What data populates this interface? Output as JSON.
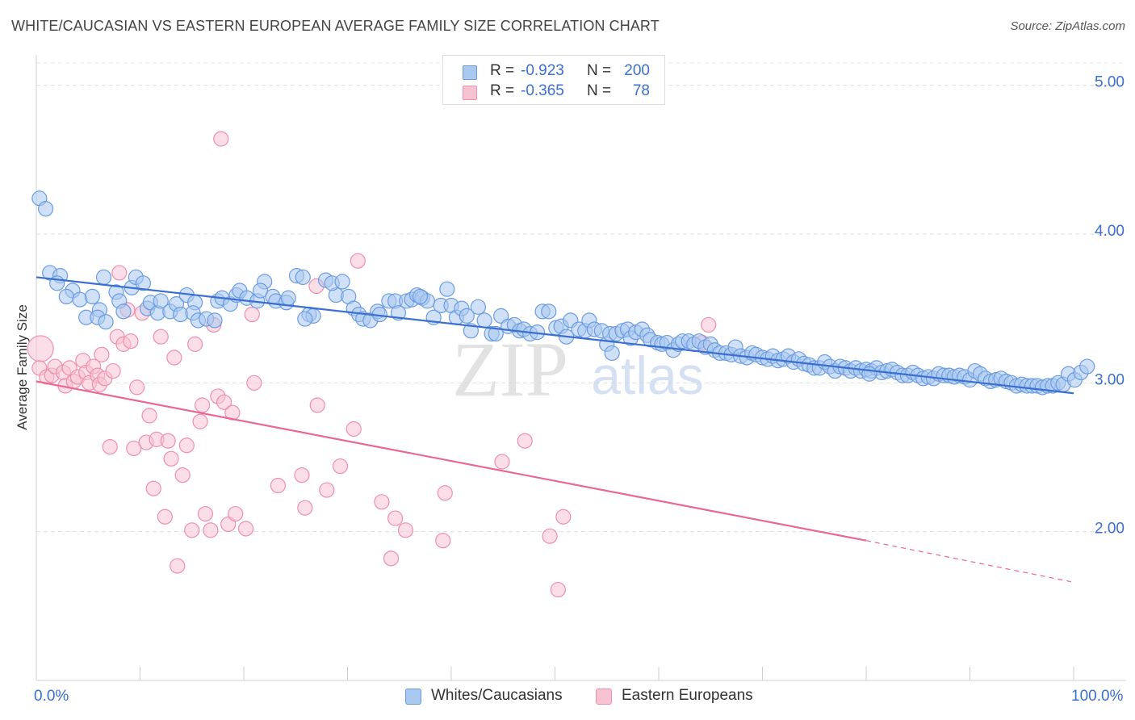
{
  "header": {
    "title": "WHITE/CAUCASIAN VS EASTERN EUROPEAN AVERAGE FAMILY SIZE CORRELATION CHART",
    "source": "Source: ZipAtlas.com"
  },
  "watermark": {
    "zip": "ZIP",
    "atlas": "atlas"
  },
  "legend_top": {
    "rows": [
      {
        "r_label": "R = ",
        "r_value": "-0.923",
        "n_label": "N = ",
        "n_value": "200"
      },
      {
        "r_label": "R = ",
        "r_value": "-0.365",
        "n_label": "N = ",
        "n_value": "78"
      }
    ]
  },
  "legend_bottom": {
    "items": [
      "Whites/Caucasians",
      "Eastern Europeans"
    ]
  },
  "colors": {
    "blue_fill": "#a9c8f0",
    "blue_stroke": "#6b9ce0",
    "blue_line": "#3a6fd0",
    "pink_fill": "#f7c3d3",
    "pink_stroke": "#ee8fac",
    "pink_line": "#e86893",
    "accent_text": "#3a6fd0"
  },
  "chart_data": {
    "type": "scatter",
    "title": "WHITE/CAUCASIAN VS EASTERN EUROPEAN AVERAGE FAMILY SIZE CORRELATION CHART",
    "xlabel": "",
    "ylabel": "Average Family Size",
    "xlim": [
      0,
      100
    ],
    "ylim": [
      1.0,
      5.15
    ],
    "x_tick_labels": [
      "0.0%",
      "100.0%"
    ],
    "y_ticks": [
      2.0,
      3.0,
      4.0,
      5.0
    ],
    "y_tick_labels": [
      "2.00",
      "3.00",
      "4.00",
      "5.00"
    ],
    "grid": true,
    "legend": "top-center",
    "series": [
      {
        "name": "Whites/Caucasians",
        "r": -0.923,
        "n": 200,
        "trend": {
          "x": [
            0,
            100
          ],
          "y": [
            3.71,
            2.93
          ]
        },
        "points": [
          [
            0.3,
            4.24
          ],
          [
            0.9,
            4.17
          ],
          [
            1.3,
            3.74
          ],
          [
            2.3,
            3.72
          ],
          [
            2.0,
            3.67
          ],
          [
            3.5,
            3.62
          ],
          [
            2.9,
            3.58
          ],
          [
            4.2,
            3.56
          ],
          [
            5.4,
            3.58
          ],
          [
            4.8,
            3.44
          ],
          [
            6.1,
            3.49
          ],
          [
            5.9,
            3.44
          ],
          [
            6.5,
            3.71
          ],
          [
            7.7,
            3.61
          ],
          [
            8.0,
            3.55
          ],
          [
            8.4,
            3.48
          ],
          [
            6.7,
            3.41
          ],
          [
            9.2,
            3.64
          ],
          [
            9.6,
            3.71
          ],
          [
            10.3,
            3.67
          ],
          [
            10.7,
            3.5
          ],
          [
            11.0,
            3.54
          ],
          [
            11.7,
            3.47
          ],
          [
            12.0,
            3.55
          ],
          [
            12.9,
            3.48
          ],
          [
            13.5,
            3.53
          ],
          [
            13.9,
            3.46
          ],
          [
            14.5,
            3.59
          ],
          [
            15.3,
            3.54
          ],
          [
            15.1,
            3.47
          ],
          [
            15.6,
            3.42
          ],
          [
            16.4,
            3.43
          ],
          [
            17.2,
            3.42
          ],
          [
            17.5,
            3.55
          ],
          [
            17.9,
            3.57
          ],
          [
            18.7,
            3.53
          ],
          [
            19.3,
            3.59
          ],
          [
            19.6,
            3.62
          ],
          [
            20.3,
            3.57
          ],
          [
            21.3,
            3.55
          ],
          [
            22.0,
            3.68
          ],
          [
            21.6,
            3.62
          ],
          [
            22.8,
            3.58
          ],
          [
            23.1,
            3.55
          ],
          [
            24.1,
            3.54
          ],
          [
            24.3,
            3.57
          ],
          [
            25.1,
            3.72
          ],
          [
            25.7,
            3.71
          ],
          [
            26.3,
            3.46
          ],
          [
            26.7,
            3.45
          ],
          [
            25.9,
            3.43
          ],
          [
            27.9,
            3.69
          ],
          [
            28.9,
            3.59
          ],
          [
            28.5,
            3.67
          ],
          [
            29.5,
            3.68
          ],
          [
            30.1,
            3.58
          ],
          [
            30.6,
            3.5
          ],
          [
            31.1,
            3.46
          ],
          [
            31.5,
            3.43
          ],
          [
            32.2,
            3.42
          ],
          [
            32.9,
            3.48
          ],
          [
            33.1,
            3.46
          ],
          [
            34.0,
            3.55
          ],
          [
            34.6,
            3.55
          ],
          [
            34.9,
            3.47
          ],
          [
            35.7,
            3.55
          ],
          [
            36.2,
            3.56
          ],
          [
            36.7,
            3.59
          ],
          [
            37.2,
            3.57
          ],
          [
            37.7,
            3.55
          ],
          [
            38.3,
            3.44
          ],
          [
            39.0,
            3.52
          ],
          [
            39.6,
            3.63
          ],
          [
            40.0,
            3.52
          ],
          [
            40.5,
            3.44
          ],
          [
            41.0,
            3.5
          ],
          [
            41.5,
            3.45
          ],
          [
            41.9,
            3.35
          ],
          [
            42.6,
            3.51
          ],
          [
            43.2,
            3.42
          ],
          [
            43.9,
            3.33
          ],
          [
            44.3,
            3.33
          ],
          [
            44.8,
            3.45
          ],
          [
            45.5,
            3.38
          ],
          [
            46.1,
            3.39
          ],
          [
            46.6,
            3.35
          ],
          [
            47.0,
            3.36
          ],
          [
            47.6,
            3.33
          ],
          [
            48.3,
            3.34
          ],
          [
            48.8,
            3.48
          ],
          [
            49.4,
            3.48
          ],
          [
            50.1,
            3.37
          ],
          [
            50.6,
            3.38
          ],
          [
            51.1,
            3.31
          ],
          [
            51.5,
            3.42
          ],
          [
            52.3,
            3.36
          ],
          [
            52.9,
            3.35
          ],
          [
            53.3,
            3.42
          ],
          [
            53.8,
            3.36
          ],
          [
            54.5,
            3.35
          ],
          [
            55.0,
            3.26
          ],
          [
            55.3,
            3.33
          ],
          [
            55.9,
            3.33
          ],
          [
            56.5,
            3.35
          ],
          [
            57.0,
            3.36
          ],
          [
            57.3,
            3.3
          ],
          [
            57.8,
            3.34
          ],
          [
            58.4,
            3.36
          ],
          [
            58.9,
            3.32
          ],
          [
            59.2,
            3.29
          ],
          [
            59.9,
            3.27
          ],
          [
            60.3,
            3.26
          ],
          [
            60.8,
            3.27
          ],
          [
            61.4,
            3.22
          ],
          [
            61.9,
            3.26
          ],
          [
            62.3,
            3.28
          ],
          [
            62.9,
            3.28
          ],
          [
            63.4,
            3.26
          ],
          [
            63.9,
            3.28
          ],
          [
            64.5,
            3.24
          ],
          [
            65.0,
            3.26
          ],
          [
            65.4,
            3.22
          ],
          [
            65.9,
            3.2
          ],
          [
            66.5,
            3.2
          ],
          [
            67.0,
            3.19
          ],
          [
            67.4,
            3.24
          ],
          [
            67.9,
            3.18
          ],
          [
            68.5,
            3.17
          ],
          [
            69.0,
            3.2
          ],
          [
            69.4,
            3.19
          ],
          [
            70.0,
            3.17
          ],
          [
            70.5,
            3.16
          ],
          [
            71.0,
            3.18
          ],
          [
            71.5,
            3.15
          ],
          [
            72.0,
            3.16
          ],
          [
            72.5,
            3.18
          ],
          [
            73.0,
            3.14
          ],
          [
            73.5,
            3.16
          ],
          [
            74.0,
            3.13
          ],
          [
            74.5,
            3.12
          ],
          [
            75.0,
            3.1
          ],
          [
            75.5,
            3.1
          ],
          [
            76.0,
            3.14
          ],
          [
            76.5,
            3.11
          ],
          [
            77.0,
            3.08
          ],
          [
            77.5,
            3.11
          ],
          [
            78.0,
            3.1
          ],
          [
            78.5,
            3.08
          ],
          [
            79.0,
            3.1
          ],
          [
            79.5,
            3.08
          ],
          [
            80.0,
            3.09
          ],
          [
            80.5,
            3.08
          ],
          [
            81.0,
            3.1
          ],
          [
            81.5,
            3.07
          ],
          [
            82.0,
            3.08
          ],
          [
            82.5,
            3.09
          ],
          [
            83.0,
            3.07
          ],
          [
            83.5,
            3.05
          ],
          [
            84.0,
            3.05
          ],
          [
            84.5,
            3.07
          ],
          [
            85.0,
            3.05
          ],
          [
            85.5,
            3.03
          ],
          [
            86.0,
            3.04
          ],
          [
            86.5,
            3.03
          ],
          [
            87.0,
            3.06
          ],
          [
            87.5,
            3.05
          ],
          [
            88.0,
            3.05
          ],
          [
            88.5,
            3.04
          ],
          [
            89.0,
            3.05
          ],
          [
            89.5,
            3.04
          ],
          [
            90.0,
            3.02
          ],
          [
            90.5,
            3.08
          ],
          [
            91.0,
            3.06
          ],
          [
            91.5,
            3.03
          ],
          [
            92.0,
            3.01
          ],
          [
            92.5,
            3.02
          ],
          [
            93.0,
            3.03
          ],
          [
            93.5,
            3.01
          ],
          [
            94.0,
            3.0
          ],
          [
            94.5,
            2.98
          ],
          [
            95.0,
            2.99
          ],
          [
            95.5,
            2.98
          ],
          [
            96.0,
            2.98
          ],
          [
            96.5,
            2.98
          ],
          [
            97.0,
            2.97
          ],
          [
            97.5,
            2.98
          ],
          [
            98.0,
            2.98
          ],
          [
            98.5,
            3.0
          ],
          [
            99.0,
            2.99
          ],
          [
            99.5,
            3.06
          ],
          [
            100.1,
            3.02
          ],
          [
            100.7,
            3.07
          ],
          [
            101.3,
            3.11
          ],
          [
            37.0,
            3.58
          ],
          [
            55.5,
            3.2
          ],
          [
            80.3,
            3.06
          ]
        ]
      },
      {
        "name": "Eastern Europeans",
        "r": -0.365,
        "n": 78,
        "trend": {
          "x": [
            0,
            80
          ],
          "y": [
            3.01,
            1.94
          ]
        },
        "trend_dashed": {
          "x": [
            80,
            100
          ],
          "y": [
            1.94,
            1.66
          ]
        },
        "points": [
          [
            0.4,
            3.23
          ],
          [
            0.3,
            3.1
          ],
          [
            1.0,
            3.04
          ],
          [
            1.5,
            3.05
          ],
          [
            1.8,
            3.11
          ],
          [
            2.6,
            3.07
          ],
          [
            2.8,
            2.98
          ],
          [
            3.2,
            3.1
          ],
          [
            3.6,
            3.01
          ],
          [
            4.0,
            3.04
          ],
          [
            4.5,
            3.15
          ],
          [
            4.8,
            3.07
          ],
          [
            5.1,
            3.0
          ],
          [
            5.5,
            3.11
          ],
          [
            5.9,
            3.05
          ],
          [
            6.1,
            2.99
          ],
          [
            6.3,
            3.19
          ],
          [
            6.6,
            3.03
          ],
          [
            7.1,
            2.57
          ],
          [
            7.4,
            3.08
          ],
          [
            7.8,
            3.31
          ],
          [
            8.0,
            3.74
          ],
          [
            8.4,
            3.26
          ],
          [
            8.8,
            3.49
          ],
          [
            9.1,
            3.28
          ],
          [
            9.4,
            2.56
          ],
          [
            9.7,
            2.97
          ],
          [
            10.2,
            3.47
          ],
          [
            10.6,
            2.6
          ],
          [
            10.9,
            2.78
          ],
          [
            11.3,
            2.29
          ],
          [
            11.6,
            2.62
          ],
          [
            12.0,
            3.31
          ],
          [
            12.4,
            2.1
          ],
          [
            12.7,
            2.61
          ],
          [
            13.0,
            2.49
          ],
          [
            13.3,
            3.17
          ],
          [
            13.6,
            1.77
          ],
          [
            14.1,
            2.38
          ],
          [
            14.5,
            2.58
          ],
          [
            15.0,
            2.01
          ],
          [
            15.3,
            3.26
          ],
          [
            15.8,
            2.74
          ],
          [
            16.0,
            2.85
          ],
          [
            16.3,
            2.12
          ],
          [
            16.8,
            2.01
          ],
          [
            17.1,
            3.39
          ],
          [
            17.5,
            2.91
          ],
          [
            17.8,
            4.64
          ],
          [
            18.1,
            2.87
          ],
          [
            18.5,
            2.05
          ],
          [
            18.9,
            2.8
          ],
          [
            19.2,
            2.12
          ],
          [
            20.2,
            2.02
          ],
          [
            20.8,
            3.46
          ],
          [
            21.0,
            3.0
          ],
          [
            23.3,
            2.31
          ],
          [
            25.6,
            2.38
          ],
          [
            25.9,
            2.16
          ],
          [
            27.1,
            2.85
          ],
          [
            28.0,
            2.28
          ],
          [
            29.3,
            2.44
          ],
          [
            30.6,
            2.69
          ],
          [
            31.0,
            3.82
          ],
          [
            33.3,
            2.2
          ],
          [
            34.2,
            1.82
          ],
          [
            34.6,
            2.09
          ],
          [
            35.6,
            2.01
          ],
          [
            39.2,
            1.94
          ],
          [
            44.9,
            2.47
          ],
          [
            47.1,
            2.61
          ],
          [
            49.5,
            1.97
          ],
          [
            50.3,
            1.61
          ],
          [
            50.8,
            2.1
          ],
          [
            64.2,
            3.27
          ],
          [
            64.8,
            3.39
          ],
          [
            39.4,
            2.26
          ],
          [
            27.0,
            3.65
          ]
        ]
      }
    ]
  }
}
